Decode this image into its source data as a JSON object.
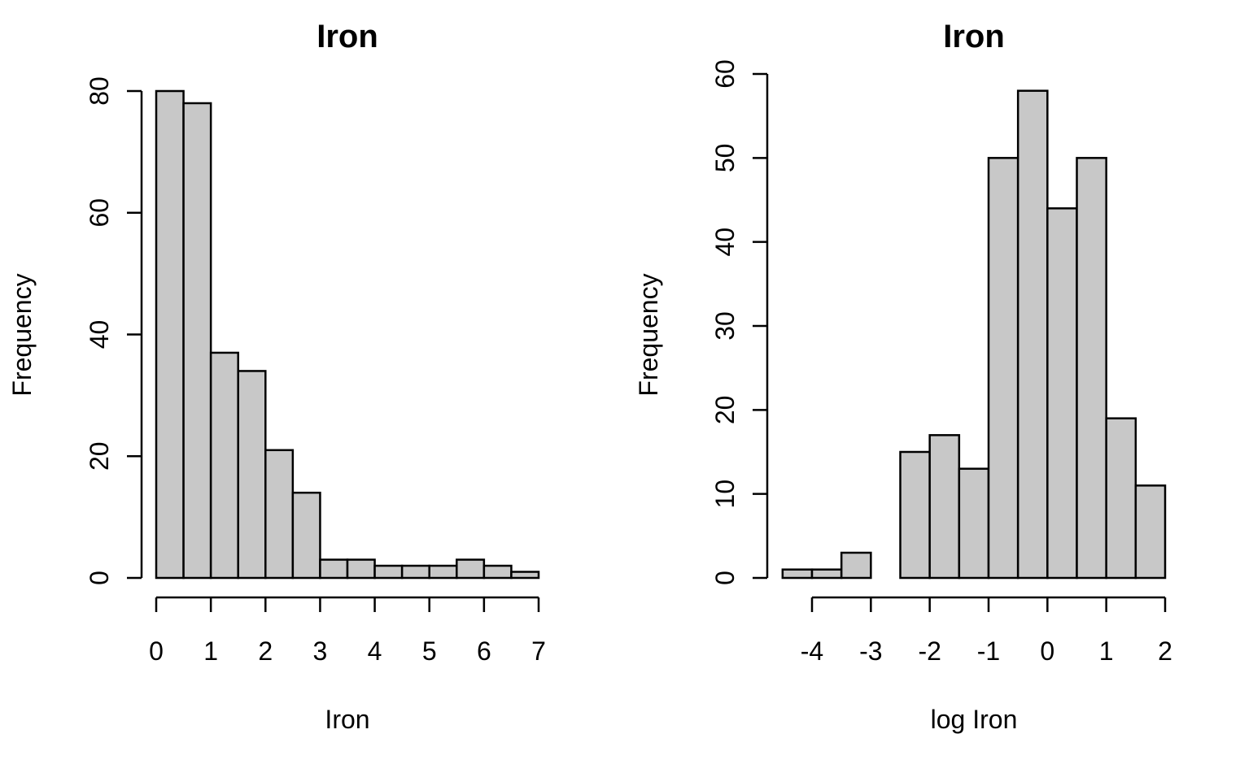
{
  "chart_data": [
    {
      "type": "bar",
      "subtype": "histogram",
      "title": "Iron",
      "xlabel": "Iron",
      "ylabel": "Frequency",
      "bin_edges": [
        0,
        0.5,
        1,
        1.5,
        2,
        2.5,
        3,
        3.5,
        4,
        4.5,
        5,
        5.5,
        6,
        6.5,
        7
      ],
      "values": [
        80,
        78,
        37,
        34,
        21,
        14,
        3,
        3,
        2,
        2,
        2,
        3,
        2,
        1
      ],
      "xlim": [
        0,
        7
      ],
      "ylim": [
        0,
        80
      ],
      "x_ticks": [
        "0",
        "1",
        "2",
        "3",
        "4",
        "5",
        "6",
        "7"
      ],
      "y_ticks": [
        "0",
        "20",
        "40",
        "60",
        "80"
      ],
      "bar_color": "#c8c8c8",
      "grid": false
    },
    {
      "type": "bar",
      "subtype": "histogram",
      "title": "Iron",
      "xlabel": "log Iron",
      "ylabel": "Frequency",
      "bin_edges": [
        -4.5,
        -4,
        -3.5,
        -3,
        -2.5,
        -2,
        -1.5,
        -1,
        -0.5,
        0,
        0.5,
        1,
        1.5,
        2
      ],
      "values": [
        1,
        1,
        3,
        0,
        15,
        17,
        13,
        50,
        58,
        44,
        50,
        19,
        11
      ],
      "xlim": [
        -4,
        2
      ],
      "ylim": [
        0,
        60
      ],
      "x_ticks": [
        "-4",
        "-3",
        "-2",
        "-1",
        "0",
        "1",
        "2"
      ],
      "y_ticks": [
        "0",
        "10",
        "20",
        "30",
        "40",
        "50",
        "60"
      ],
      "bar_color": "#c8c8c8",
      "grid": false
    }
  ]
}
